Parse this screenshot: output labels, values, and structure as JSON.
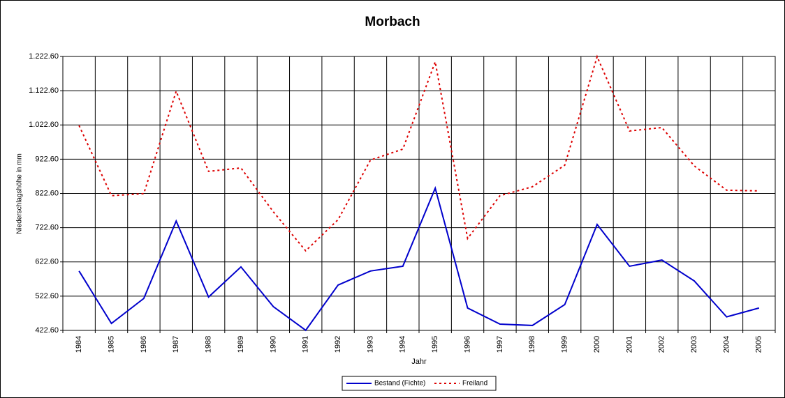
{
  "chart_data": {
    "type": "line",
    "title": "Morbach",
    "x_label": "Jahr",
    "y_label": "Niederschlagshöhe in mm",
    "categories": [
      "1984",
      "1985",
      "1986",
      "1987",
      "1988",
      "1989",
      "1990",
      "1991",
      "1992",
      "1993",
      "1994",
      "1995",
      "1996",
      "1997",
      "1998",
      "1999",
      "2000",
      "2001",
      "2002",
      "2003",
      "2004",
      "2005"
    ],
    "series": [
      {
        "name": "Bestand (Fichte)",
        "color": "#0000cc",
        "dash": "solid",
        "values": [
          596,
          443,
          516,
          742,
          520,
          608,
          492,
          423,
          555,
          596,
          610,
          838,
          488,
          441,
          437,
          498,
          732,
          610,
          628,
          567,
          462,
          488
        ]
      },
      {
        "name": "Freiland",
        "color": "#dd0000",
        "dash": "dotted",
        "values": [
          1021,
          816,
          822,
          1121,
          887,
          897,
          769,
          655,
          746,
          920,
          952,
          1207,
          691,
          816,
          842,
          905,
          1222,
          1005,
          1015,
          903,
          832,
          830
        ]
      }
    ],
    "ylim": [
      422.6,
      1222.6
    ],
    "yticks": [
      {
        "value": 422.6,
        "label": "422.60"
      },
      {
        "value": 522.6,
        "label": "522.60"
      },
      {
        "value": 622.6,
        "label": "622.60"
      },
      {
        "value": 722.6,
        "label": "722.60"
      },
      {
        "value": 822.6,
        "label": "822.60"
      },
      {
        "value": 922.6,
        "label": "922.60"
      },
      {
        "value": 1022.6,
        "label": "1.022.60"
      },
      {
        "value": 1122.6,
        "label": "1.122.60"
      },
      {
        "value": 1222.6,
        "label": "1.222.60"
      }
    ],
    "grid": true,
    "legend": "bottom"
  }
}
